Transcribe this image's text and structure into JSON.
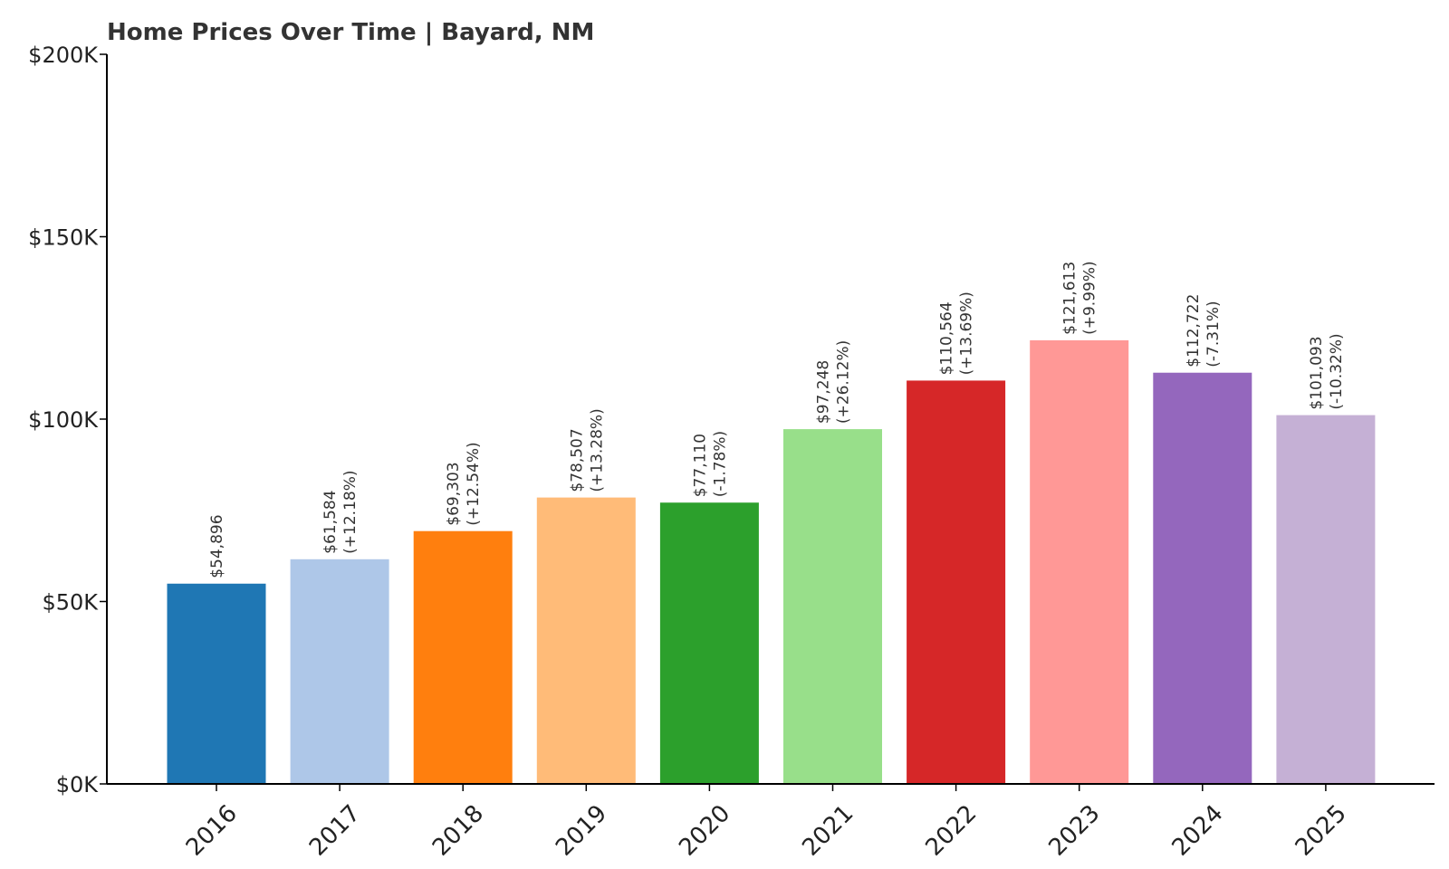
{
  "chart_data": {
    "type": "bar",
    "title": "Home Prices Over Time | Bayard, NM",
    "xlabel": "",
    "ylabel": "",
    "ylim": [
      0,
      200000
    ],
    "yticks": [
      0,
      50000,
      100000,
      150000,
      200000
    ],
    "ytick_labels": [
      "$0K",
      "$50K",
      "$100K",
      "$150K",
      "$200K"
    ],
    "grid": false,
    "categories": [
      "2016",
      "2017",
      "2018",
      "2019",
      "2020",
      "2021",
      "2022",
      "2023",
      "2024",
      "2025"
    ],
    "values": [
      54896,
      61584,
      69303,
      78507,
      77110,
      97248,
      110564,
      121613,
      112722,
      101093
    ],
    "value_labels": [
      "$54,896",
      "$61,584",
      "$69,303",
      "$78,507",
      "$77,110",
      "$97,248",
      "$110,564",
      "$121,613",
      "$112,722",
      "$101,093"
    ],
    "change_labels": [
      "",
      "(+12.18%)",
      "(+12.54%)",
      "(+13.28%)",
      "(-1.78%)",
      "(+26.12%)",
      "(+13.69%)",
      "(+9.99%)",
      "(-7.31%)",
      "(-10.32%)"
    ],
    "colors": [
      "#1f77b4",
      "#aec7e8",
      "#ff7f0e",
      "#ffbb78",
      "#2ca02c",
      "#98df8a",
      "#d62728",
      "#ff9896",
      "#9467bd",
      "#c5b0d5"
    ]
  }
}
